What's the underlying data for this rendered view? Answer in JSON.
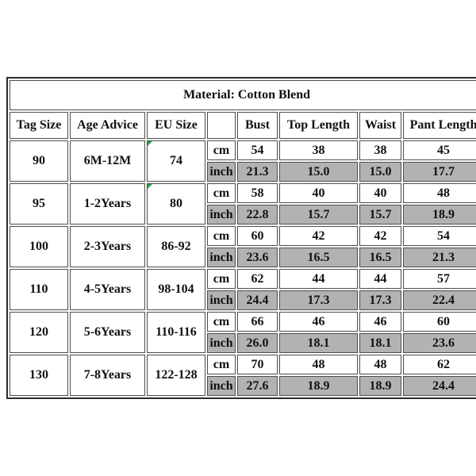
{
  "chart_data": {
    "type": "table",
    "title": "Material: Cotton Blend",
    "columns": [
      "Tag Size",
      "Age Advice",
      "EU Size",
      "",
      "Bust",
      "Top Length",
      "Waist",
      "Pant Length"
    ],
    "units": [
      "cm",
      "inch"
    ],
    "rows": [
      {
        "tag_size": "90",
        "age_advice": "6M-12M",
        "eu_size": "74",
        "eu_flag": true,
        "cm": [
          "54",
          "38",
          "38",
          "45"
        ],
        "inch": [
          "21.3",
          "15.0",
          "15.0",
          "17.7"
        ]
      },
      {
        "tag_size": "95",
        "age_advice": "1-2Years",
        "eu_size": "80",
        "eu_flag": true,
        "cm": [
          "58",
          "40",
          "40",
          "48"
        ],
        "inch": [
          "22.8",
          "15.7",
          "15.7",
          "18.9"
        ]
      },
      {
        "tag_size": "100",
        "age_advice": "2-3Years",
        "eu_size": "86-92",
        "eu_flag": false,
        "cm": [
          "60",
          "42",
          "42",
          "54"
        ],
        "inch": [
          "23.6",
          "16.5",
          "16.5",
          "21.3"
        ]
      },
      {
        "tag_size": "110",
        "age_advice": "4-5Years",
        "eu_size": "98-104",
        "eu_flag": false,
        "cm": [
          "62",
          "44",
          "44",
          "57"
        ],
        "inch": [
          "24.4",
          "17.3",
          "17.3",
          "22.4"
        ]
      },
      {
        "tag_size": "120",
        "age_advice": "5-6Years",
        "eu_size": "110-116",
        "eu_flag": false,
        "cm": [
          "66",
          "46",
          "46",
          "60"
        ],
        "inch": [
          "26.0",
          "18.1",
          "18.1",
          "23.6"
        ]
      },
      {
        "tag_size": "130",
        "age_advice": "7-8Years",
        "eu_size": "122-128",
        "eu_flag": false,
        "cm": [
          "70",
          "48",
          "48",
          "62"
        ],
        "inch": [
          "27.6",
          "18.9",
          "18.9",
          "24.4"
        ]
      }
    ],
    "colors": {
      "gray_row": "#b2b2b2",
      "outer_border": "#2b2b2b",
      "cell_border": "#4c4c4c",
      "flag_green": "#2f9e44",
      "text": "#111111",
      "background": "#ffffff"
    }
  }
}
